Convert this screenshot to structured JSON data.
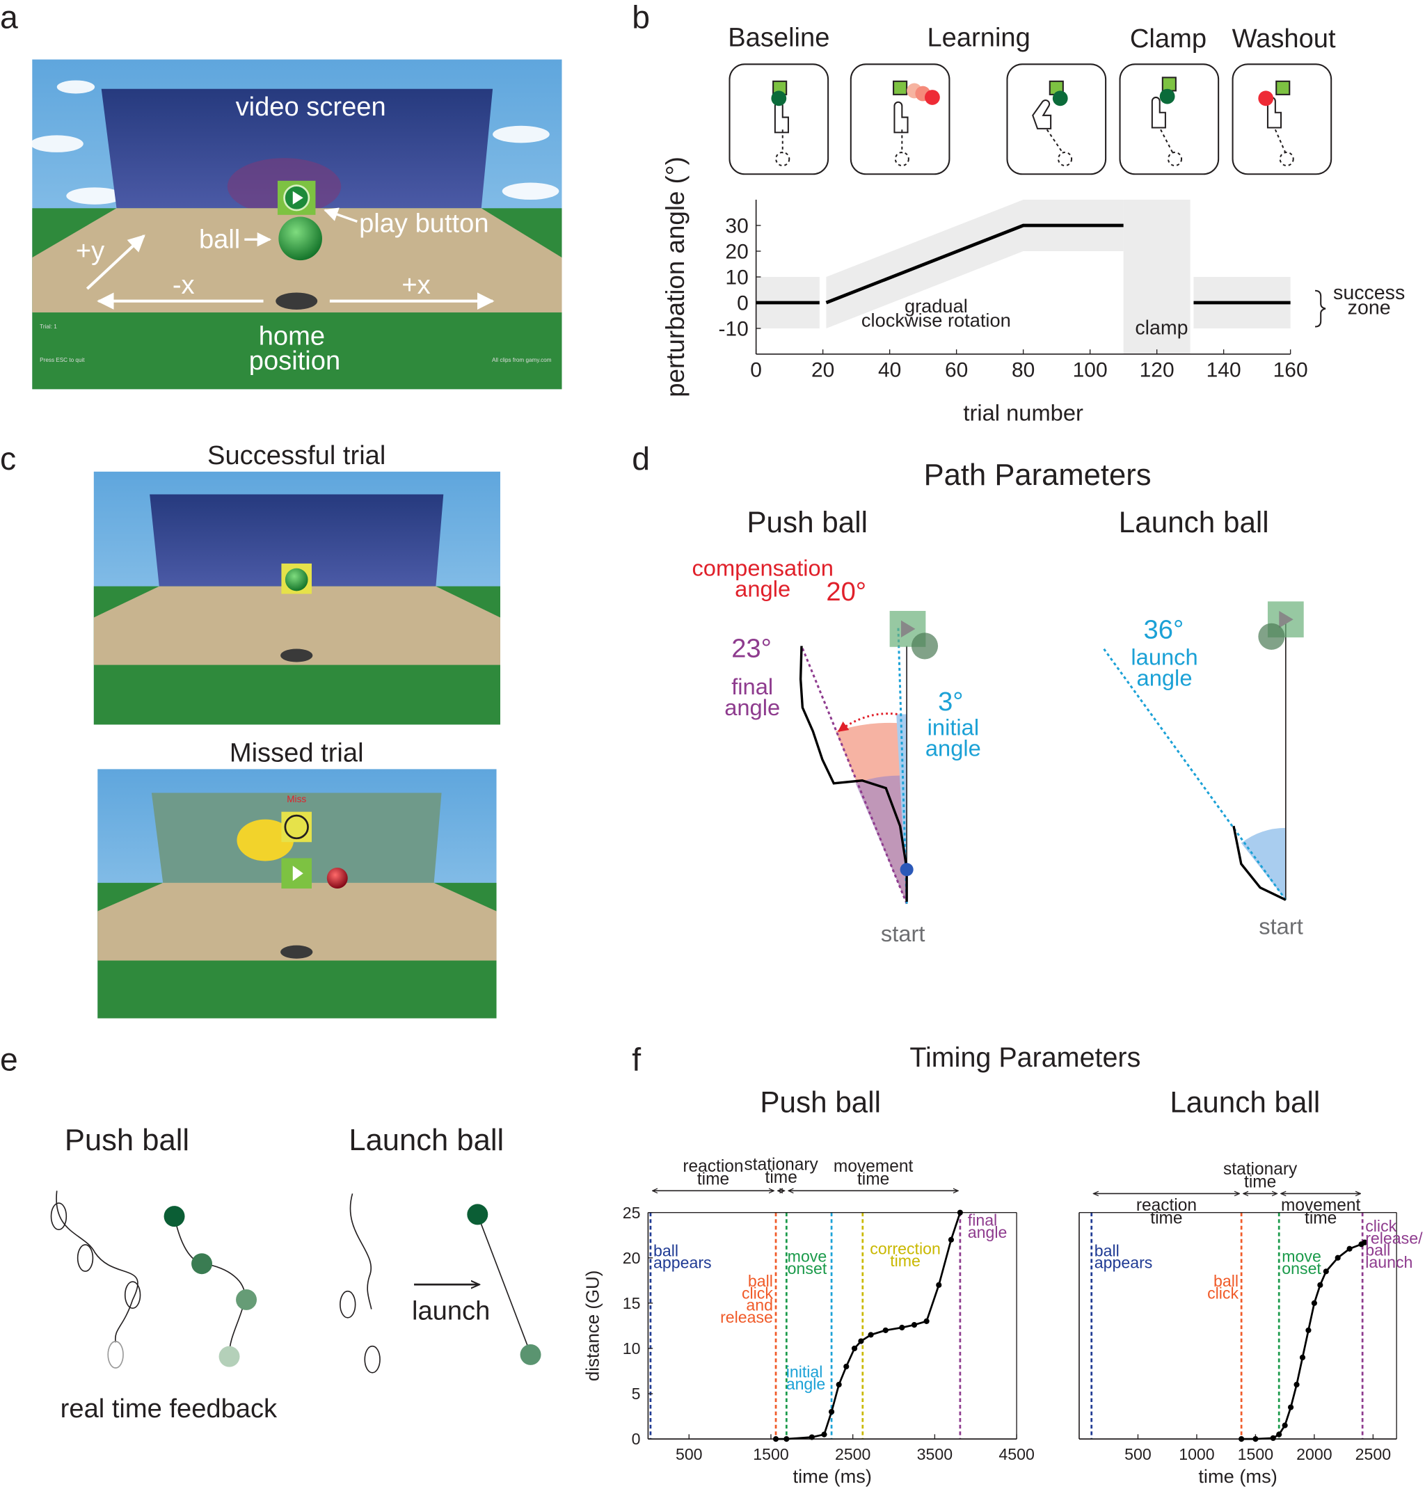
{
  "panel_labels": [
    "a",
    "b",
    "c",
    "d",
    "e",
    "f"
  ],
  "panel_a": {
    "video_screen": "video screen",
    "play_button": "play button",
    "ball": "ball",
    "plus_y": "+y",
    "minus_x": "-x",
    "plus_x": "+x",
    "home_position": [
      "home",
      "position"
    ],
    "trial": "Trial: 1",
    "quit": "Press ESC to quit",
    "credit": "All clips from gamy.com"
  },
  "panel_b": {
    "phases": [
      "Baseline",
      "Learning",
      "Clamp",
      "Washout"
    ]
  },
  "panel_c": {
    "successful": "Successful trial",
    "missed": "Missed trial",
    "miss": "Miss"
  },
  "panel_d": {
    "title": "Path Parameters",
    "push": {
      "title": "Push ball",
      "compensation": [
        "compensation",
        "angle"
      ],
      "compensation_value": "20°",
      "final_value": "23°",
      "final": [
        "final",
        "angle"
      ],
      "initial_value": "3°",
      "initial": [
        "initial",
        "angle"
      ],
      "start": "start"
    },
    "launch": {
      "title": "Launch ball",
      "launch_value": "36°",
      "launch": [
        "launch",
        "angle"
      ],
      "start": "start"
    }
  },
  "panel_e": {
    "push": "Push ball",
    "launch_title": "Launch ball",
    "launch": "launch",
    "feedback": "real time feedback"
  },
  "chart_data": [
    {
      "type": "line",
      "x": [
        0,
        19,
        20,
        21,
        80,
        110,
        120,
        131,
        160
      ],
      "values": [
        0,
        0,
        null,
        0,
        30,
        30,
        null,
        0,
        0
      ],
      "color": "#000000",
      "xlim": [
        0,
        160
      ],
      "ylim": [
        -20,
        40
      ],
      "xticks": [
        0,
        20,
        40,
        60,
        80,
        100,
        120,
        140,
        160
      ],
      "yticks": [
        -10,
        0,
        10,
        20,
        30
      ],
      "xlabel": "trial number",
      "ylabel": "perturbation angle (°)",
      "success_zone": 10,
      "clamp_region": [
        110,
        130
      ],
      "annotations": {
        "rotation": [
          "gradual",
          "clockwise rotation"
        ],
        "clamp": "clamp",
        "success": [
          "success",
          "zone"
        ]
      }
    },
    {
      "type": "line",
      "title": "Timing Parameters",
      "subtitle": "Push ball",
      "x": [
        1560,
        1690,
        2000,
        2150,
        2240,
        2330,
        2420,
        2520,
        2600,
        2720,
        2900,
        3100,
        3250,
        3400,
        3550,
        3700,
        3810
      ],
      "values": [
        0,
        0,
        0.2,
        0.5,
        3,
        6,
        8,
        10,
        10.8,
        11.5,
        12,
        12.3,
        12.6,
        13,
        17,
        22,
        25
      ],
      "color": "#000000",
      "xlim": [
        0,
        4500
      ],
      "ylim": [
        0,
        25
      ],
      "xticks": [
        500,
        1500,
        2500,
        3500,
        4500
      ],
      "yticks": [
        0,
        5,
        10,
        15,
        20,
        25
      ],
      "xlabel": "time (ms)",
      "ylabel": "distance (GU)",
      "events": [
        {
          "label": [
            "ball",
            "appears"
          ],
          "x": 30,
          "color": "#1f3a93"
        },
        {
          "label": [
            "ball",
            "click",
            "and",
            "release"
          ],
          "x": 1560,
          "color": "#f05a28"
        },
        {
          "label": [
            "move",
            "onset"
          ],
          "x": 1690,
          "color": "#1a9a4a"
        },
        {
          "label": [
            "initial",
            "angle"
          ],
          "x": 2240,
          "color": "#1ba1d6"
        },
        {
          "label": [
            "correction",
            "time"
          ],
          "x": 2620,
          "color": "#c9b800"
        },
        {
          "label": [
            "final",
            "angle"
          ],
          "x": 3810,
          "color": "#8e3b8e"
        }
      ],
      "phases": [
        {
          "label": [
            "reaction",
            "time"
          ],
          "start": 30,
          "end": 1560
        },
        {
          "label": [
            "stationary",
            "time"
          ],
          "start": 1560,
          "end": 1690
        },
        {
          "label": [
            "movement",
            "time"
          ],
          "start": 1690,
          "end": 3810
        }
      ]
    },
    {
      "type": "line",
      "subtitle": "Launch ball",
      "x": [
        1380,
        1500,
        1650,
        1700,
        1750,
        1800,
        1850,
        1900,
        1950,
        2000,
        2050,
        2100,
        2200,
        2300,
        2400,
        2430
      ],
      "values": [
        0,
        0,
        0.1,
        0.5,
        1.5,
        3.5,
        6,
        9,
        12,
        15,
        17,
        18.5,
        20,
        21,
        21.5,
        21.7
      ],
      "color": "#000000",
      "xlim": [
        0,
        2700
      ],
      "ylim": [
        0,
        25
      ],
      "xticks": [
        500,
        1000,
        1500,
        2000,
        2500
      ],
      "xlabel": "time (ms)",
      "events": [
        {
          "label": [
            "ball",
            "appears"
          ],
          "x": 105,
          "color": "#1f3a93"
        },
        {
          "label": [
            "ball",
            "click"
          ],
          "x": 1380,
          "color": "#f05a28"
        },
        {
          "label": [
            "move",
            "onset"
          ],
          "x": 1700,
          "color": "#1a9a4a"
        },
        {
          "label": [
            "click",
            "release/",
            "ball",
            "launch"
          ],
          "x": 2410,
          "color": "#8e3b8e"
        }
      ],
      "phases": [
        {
          "label": [
            "reaction",
            "time"
          ],
          "start": 105,
          "end": 1380
        },
        {
          "label": [
            "stationary",
            "time"
          ],
          "start": 1380,
          "end": 1700
        },
        {
          "label": [
            "movement",
            "time"
          ],
          "start": 1700,
          "end": 2410
        }
      ]
    }
  ]
}
